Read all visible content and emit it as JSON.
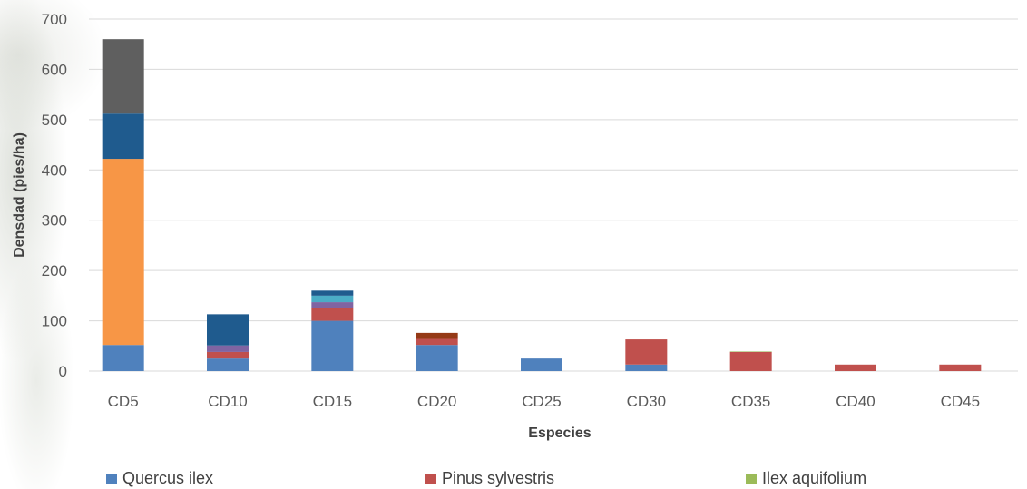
{
  "chart_data": {
    "type": "bar",
    "stacked": true,
    "title": "",
    "xlabel": "Especies",
    "ylabel": "Densdad (pies/ha)",
    "ylim": [
      0,
      700
    ],
    "yticks": [
      0,
      100,
      200,
      300,
      400,
      500,
      600,
      700
    ],
    "grid": true,
    "legend_position": "bottom",
    "categories": [
      "CD5",
      "CD10",
      "CD15",
      "CD20",
      "CD25",
      "CD30",
      "CD35",
      "CD40",
      "CD45"
    ],
    "series": [
      {
        "name": "Quercus ilex",
        "color": "#4f81bd",
        "values": [
          52,
          25,
          100,
          52,
          25,
          13,
          0,
          0,
          0
        ]
      },
      {
        "name": "Pinus sylvestris",
        "color": "#c0504d",
        "values": [
          0,
          13,
          25,
          12,
          0,
          50,
          38,
          13,
          13
        ]
      },
      {
        "name": "Ilex aquifolium",
        "color": "#9bbb59",
        "values": [
          0,
          0,
          0,
          0,
          0,
          0,
          1,
          0,
          0
        ]
      },
      {
        "color": "#8064a2",
        "values": [
          0,
          13,
          12,
          0,
          0,
          0,
          0,
          0,
          0
        ]
      },
      {
        "color": "#4bacc6",
        "values": [
          0,
          0,
          13,
          0,
          0,
          0,
          0,
          0,
          0
        ]
      },
      {
        "color": "#f79646",
        "values": [
          370,
          0,
          0,
          0,
          0,
          0,
          0,
          0,
          0
        ]
      },
      {
        "color": "#1f5b8e",
        "values": [
          90,
          62,
          10,
          0,
          0,
          0,
          0,
          0,
          0
        ]
      },
      {
        "color": "#953a16",
        "values": [
          0,
          0,
          0,
          12,
          0,
          0,
          0,
          0,
          0
        ]
      },
      {
        "color": "#5f5f5f",
        "values": [
          148,
          0,
          0,
          0,
          0,
          0,
          0,
          0,
          0
        ]
      }
    ]
  }
}
